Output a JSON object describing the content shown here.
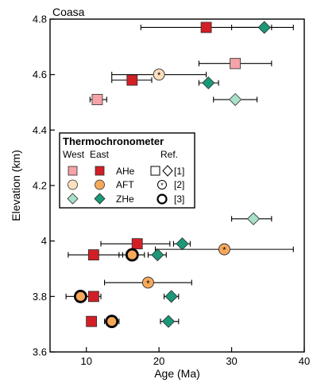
{
  "chart_data": {
    "type": "scatter",
    "title": "Coasa",
    "xlabel": "Age (Ma)",
    "ylabel": "Elevation (km)",
    "xlim": [
      5,
      40
    ],
    "ylim": [
      3.6,
      4.8
    ],
    "xticks": [
      10,
      20,
      30,
      40
    ],
    "yticks": [
      3.6,
      3.8,
      4.0,
      4.2,
      4.4,
      4.6,
      4.8
    ],
    "ytick_labels": [
      "3.6",
      "3.8",
      "4",
      "4.2",
      "4.4",
      "4.6",
      "4.8"
    ],
    "grid": false,
    "legend": {
      "position": "left-middle",
      "title": "Thermochronometer",
      "col_west": "West",
      "col_east": "East",
      "col_ref": "Ref.",
      "rows": [
        {
          "label": "AHe",
          "ref": "[1]"
        },
        {
          "label": "AFT",
          "ref": "[2]"
        },
        {
          "label": "ZHe",
          "ref": "[3]"
        }
      ]
    },
    "colors": {
      "AHe_west": "#f4a3a8",
      "AHe_east": "#d21f26",
      "AFT_west": "#fde0bf",
      "AFT_east": "#f6a95b",
      "ZHe_west": "#a8e0c8",
      "ZHe_east": "#1b9878",
      "stroke": "#2b2b2b"
    },
    "series": [
      {
        "name": "AHe",
        "side": "West",
        "points": [
          {
            "x": 11.5,
            "y": 4.51,
            "xerr": [
              10.5,
              12.8
            ],
            "ref": 1
          },
          {
            "x": 30.5,
            "y": 4.64,
            "xerr": [
              25.5,
              35.5
            ],
            "ref": 1
          }
        ]
      },
      {
        "name": "AHe",
        "side": "East",
        "points": [
          {
            "x": 26.5,
            "y": 4.77,
            "xerr": [
              17.5,
              35.5
            ],
            "ref": 1
          },
          {
            "x": 16.3,
            "y": 4.58,
            "xerr": [
              13.5,
              19.0
            ],
            "ref": 1
          },
          {
            "x": 17.0,
            "y": 3.99,
            "xerr": [
              12.0,
              21.5
            ],
            "ref": 1
          },
          {
            "x": 11.0,
            "y": 3.95,
            "xerr": [
              7.5,
              15.0
            ],
            "ref": 1
          },
          {
            "x": 11.0,
            "y": 3.8,
            "xerr": [
              10.0,
              12.0
            ],
            "ref": 1
          },
          {
            "x": 10.7,
            "y": 3.71,
            "xerr": null,
            "ref": 1
          }
        ]
      },
      {
        "name": "AFT",
        "side": "West",
        "points": [
          {
            "x": 20.0,
            "y": 4.6,
            "xerr": [
              13.5,
              26.5
            ],
            "ref": 2
          }
        ]
      },
      {
        "name": "AFT",
        "side": "East",
        "points": [
          {
            "x": 29.0,
            "y": 3.97,
            "xerr": [
              19.5,
              38.5
            ],
            "ref": 2
          },
          {
            "x": 18.5,
            "y": 3.85,
            "xerr": [
              12.5,
              24.5
            ],
            "ref": 2
          },
          {
            "x": 16.3,
            "y": 3.95,
            "xerr": [
              14.5,
              18.0
            ],
            "ref": 3
          },
          {
            "x": 9.2,
            "y": 3.8,
            "xerr": [
              7.2,
              11.2
            ],
            "ref": 3
          },
          {
            "x": 13.5,
            "y": 3.71,
            "xerr": [
              12.5,
              14.5
            ],
            "ref": 3
          }
        ]
      },
      {
        "name": "ZHe",
        "side": "West",
        "points": [
          {
            "x": 30.5,
            "y": 4.51,
            "xerr": [
              27.5,
              33.5
            ],
            "ref": 1
          },
          {
            "x": 33.0,
            "y": 4.08,
            "xerr": [
              30.0,
              35.5
            ],
            "ref": 1
          }
        ]
      },
      {
        "name": "ZHe",
        "side": "East",
        "points": [
          {
            "x": 34.5,
            "y": 4.77,
            "xerr": [
              30.0,
              38.5
            ],
            "ref": 1
          },
          {
            "x": 26.8,
            "y": 4.57,
            "xerr": [
              25.5,
              28.2
            ],
            "ref": 1
          },
          {
            "x": 23.2,
            "y": 3.99,
            "xerr": [
              22.0,
              24.3
            ],
            "ref": 1
          },
          {
            "x": 19.8,
            "y": 3.95,
            "xerr": [
              18.5,
              21.0
            ],
            "ref": 1
          },
          {
            "x": 21.7,
            "y": 3.8,
            "xerr": [
              20.7,
              22.7
            ],
            "ref": 1
          },
          {
            "x": 21.3,
            "y": 3.71,
            "xerr": [
              20.2,
              22.7
            ],
            "ref": 1
          }
        ]
      }
    ]
  }
}
